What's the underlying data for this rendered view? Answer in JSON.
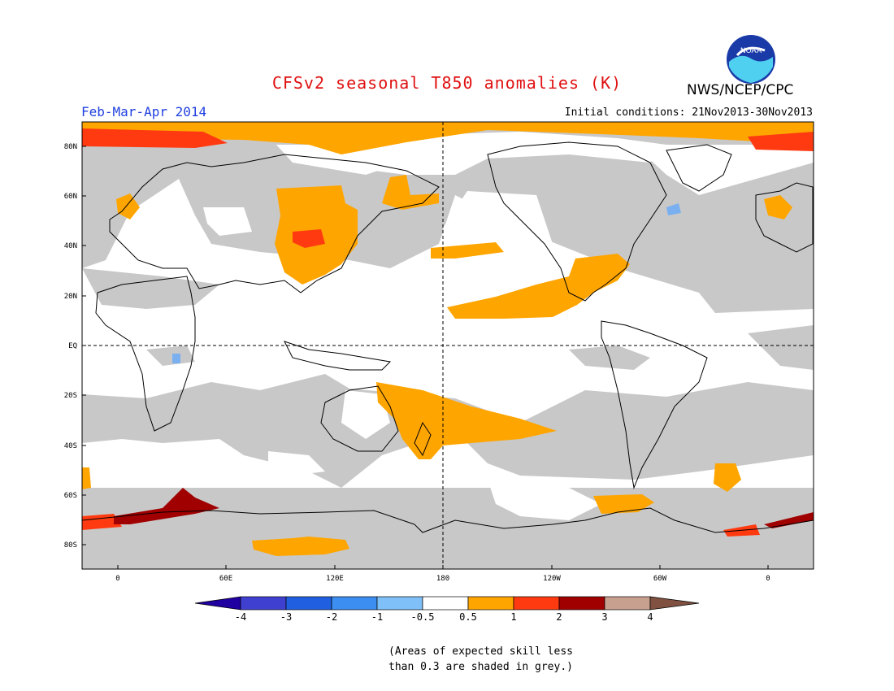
{
  "header": {
    "title": "CFSv2 seasonal T850 anomalies (K)",
    "agency": "NWS/NCEP/CPC",
    "logo_text": "NOAA",
    "season": "Feb-Mar-Apr 2014",
    "initial_conditions": "Initial conditions: 21Nov2013-30Nov2013"
  },
  "map": {
    "lat_labels": [
      "80N",
      "60N",
      "40N",
      "20N",
      "EQ",
      "20S",
      "40S",
      "60S",
      "80S"
    ],
    "lon_labels": [
      "0",
      "60E",
      "120E",
      "180",
      "120W",
      "60W",
      "0"
    ],
    "colors": {
      "skill_grey": "#c8c8c8",
      "land_outline": "#000000",
      "orange": "#ffa500",
      "red": "#ff3a10",
      "dark_red": "#a00000",
      "light_blue": "#7ab0f0"
    }
  },
  "colorbar": {
    "ticks": [
      "-4",
      "-3",
      "-2",
      "-1",
      "-0.5",
      "0.5",
      "1",
      "2",
      "3",
      "4"
    ],
    "colors": [
      "#2000a0",
      "#4040d0",
      "#2060e0",
      "#3c8ef0",
      "#80c0f8",
      "#ffffff",
      "#ffa500",
      "#ff3a10",
      "#a00000",
      "#c8a090",
      "#805040"
    ]
  },
  "note": {
    "line1": "(Areas of expected skill less",
    "line2": "than 0.3 are shaded in grey.)"
  }
}
